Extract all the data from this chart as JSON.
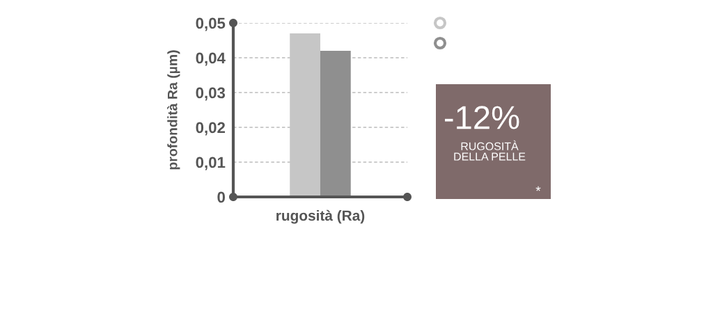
{
  "chart_data": {
    "type": "bar",
    "ylabel": "profondità Ra (µm)",
    "xlabel": "rugosità (Ra)",
    "categories": [
      null
    ],
    "series": [
      {
        "color": "#c6c6c6",
        "values": [
          0.047
        ]
      },
      {
        "color": "#8f8f8f",
        "values": [
          0.042
        ]
      }
    ],
    "ylim": [
      0,
      0.05
    ],
    "yticks": [
      0,
      {
        "value": 0.01,
        "label": "0,01"
      },
      {
        "value": 0.02,
        "label": "0,02"
      },
      {
        "value": 0.03,
        "label": "0,03"
      },
      {
        "value": 0.04,
        "label": "0,04"
      },
      {
        "value": 0.05,
        "label": "0,05"
      }
    ],
    "grid": "y",
    "annotations": [
      "-12%",
      "RUGOSITÀ\nDELLA PELLE",
      "*"
    ]
  }
}
